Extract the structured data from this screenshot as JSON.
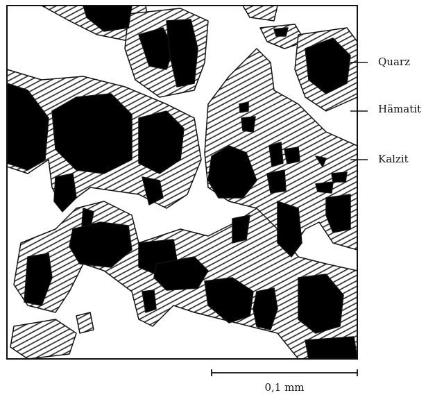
{
  "labels": [
    "Quarz",
    "Hämatit",
    "Kalzit"
  ],
  "scale_bar": {
    "label": "0,1 mm"
  }
}
